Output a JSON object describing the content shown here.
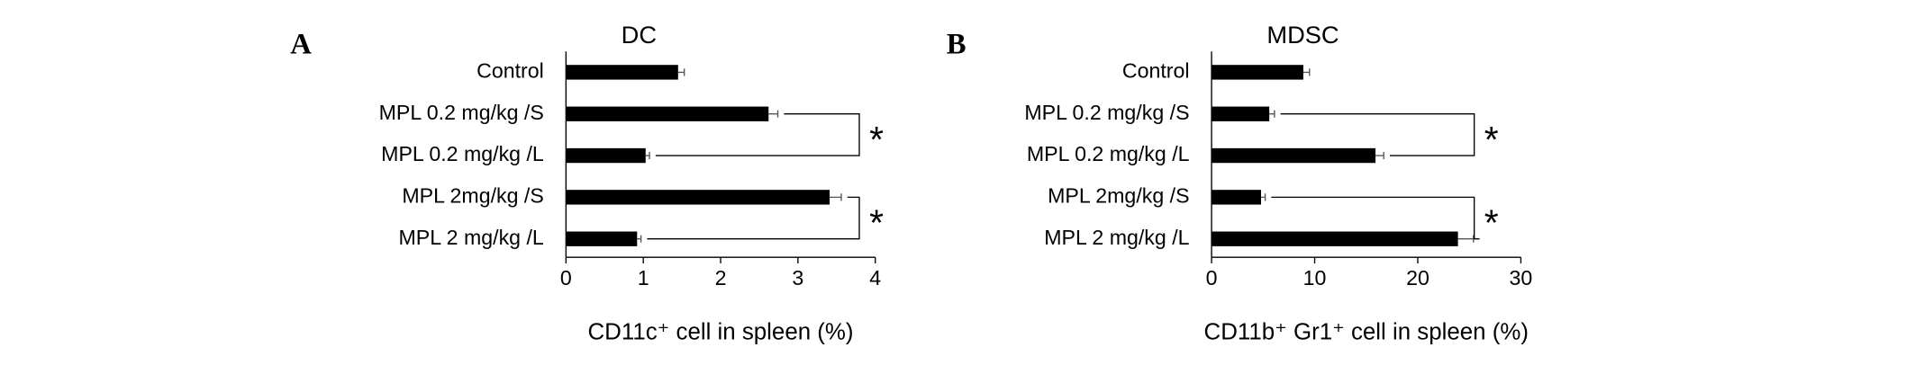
{
  "chart_data": [
    {
      "type": "bar",
      "orientation": "horizontal",
      "panel": "A",
      "title": "DC",
      "categories": [
        "Control",
        "MPL 0.2 mg/kg /S",
        "MPL 0.2 mg/kg /L",
        "MPL 2mg/kg /S",
        "MPL 2 mg/kg /L"
      ],
      "values": [
        1.45,
        2.62,
        1.03,
        3.41,
        0.92
      ],
      "errors": [
        0.08,
        0.12,
        0.05,
        0.15,
        0.05
      ],
      "color": "#000000",
      "xlim": [
        0,
        4
      ],
      "xticks": [
        0,
        1,
        2,
        3,
        4
      ],
      "xlabel": "CD11c⁺ cell in spleen (%)",
      "annotations": [
        {
          "text": "*"
        },
        {
          "text": "*"
        }
      ]
    },
    {
      "type": "bar",
      "orientation": "horizontal",
      "panel": "B",
      "title": "MDSC",
      "categories": [
        "Control",
        "MPL 0.2 mg/kg /S",
        "MPL 0.2 mg/kg /L",
        "MPL 2mg/kg /S",
        "MPL 2 mg/kg /L"
      ],
      "values": [
        8.9,
        5.6,
        15.9,
        4.8,
        23.9
      ],
      "errors": [
        0.6,
        0.5,
        0.8,
        0.4,
        1.5
      ],
      "color": "#000000",
      "xlim": [
        0,
        30
      ],
      "xticks": [
        0,
        10,
        20,
        30
      ],
      "xlabel": "CD11b⁺ Gr1⁺ cell in spleen (%)",
      "annotations": [
        {
          "text": "*"
        },
        {
          "text": "*"
        }
      ]
    }
  ]
}
